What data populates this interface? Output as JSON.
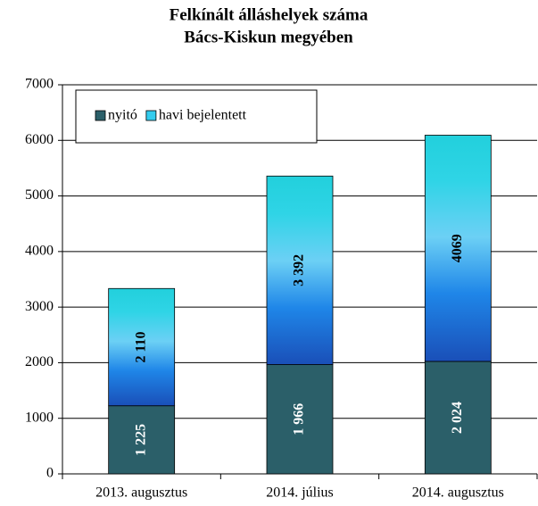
{
  "chart_data": {
    "type": "stacked_bar",
    "title": "Felkínált álláshelyek száma",
    "subtitle": "Bács-Kiskun megyében",
    "categories": [
      "2013. augusztus",
      "2014. július",
      "2014. augusztus"
    ],
    "series": [
      {
        "name": "nyitó",
        "color": "#2b5f69",
        "values": [
          1225,
          1966,
          2024
        ],
        "value_labels": [
          "1 225",
          "1 966",
          "2 024"
        ]
      },
      {
        "name": "havi bejelentett",
        "color": "#33ccee",
        "values": [
          2110,
          3392,
          4069
        ],
        "value_labels": [
          "2 110",
          "3 392",
          "4069"
        ]
      }
    ],
    "ylim": [
      0,
      7000
    ],
    "yticks": [
      0,
      1000,
      2000,
      3000,
      4000,
      5000,
      6000,
      7000
    ],
    "grid": true,
    "legend": "top-left"
  }
}
